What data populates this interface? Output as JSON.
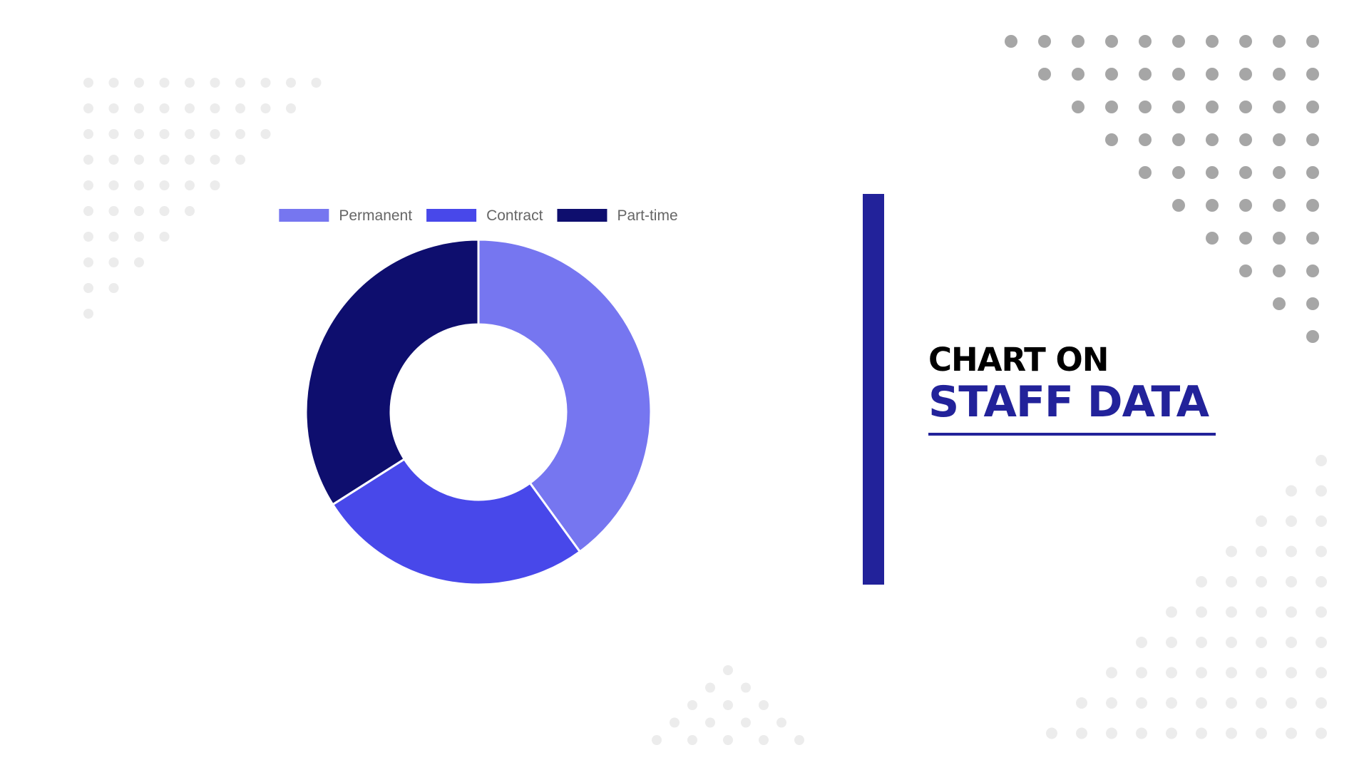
{
  "heading": {
    "line1": "CHART ON",
    "line2": "STAFF DATA"
  },
  "colors": {
    "accent": "#22229a",
    "permanent": "#7676f0",
    "contract": "#4848ea",
    "part_time": "#0e0e6e",
    "dots_dark": "#a6a6a6",
    "dots_light": "#ececec"
  },
  "chart_data": {
    "type": "pie",
    "variant": "doughnut",
    "categories": [
      "Permanent",
      "Contract",
      "Part-time"
    ],
    "values": [
      40,
      26,
      34
    ],
    "colors": [
      "#7676f0",
      "#4848ea",
      "#0e0e6e"
    ],
    "legend": "top"
  }
}
